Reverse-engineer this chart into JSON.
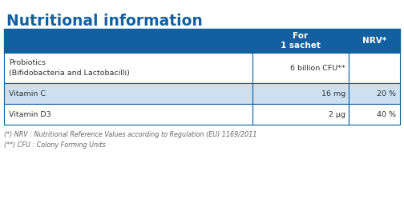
{
  "title": "Nutritional information",
  "title_color": "#1260a0",
  "title_fontsize": 13.5,
  "header_bg": "#1260a0",
  "header_text_color": "#ffffff",
  "header_col1": "For\n1 sachet",
  "header_col2": "NRV*",
  "rows": [
    {
      "name": "Probiotics\n(Bifidobacteria and Lactobacilli)",
      "value": "6 billion CFU**",
      "nrv": "",
      "bg": "#ffffff"
    },
    {
      "name": "Vitamin C",
      "value": "16 mg",
      "nrv": "20 %",
      "bg": "#cce0f0"
    },
    {
      "name": "Vitamin D3",
      "value": "2 μg",
      "nrv": "40 %",
      "bg": "#ffffff"
    }
  ],
  "footnotes": [
    "(*) NRV : Nutritional Reference Values according to Regulation (EU) 1169/2011",
    "(**) CFU : Colony Forming Units"
  ],
  "footnote_color": "#666666",
  "footnote_fontsize": 5.8,
  "border_color": "#1260a0",
  "text_color": "#333333",
  "figsize": [
    5.04,
    2.49
  ],
  "dpi": 100
}
